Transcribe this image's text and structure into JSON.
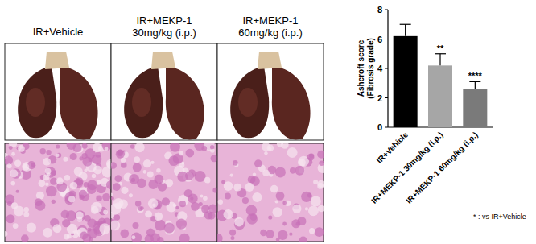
{
  "panels": {
    "labels": [
      "IR+Vehicle",
      "IR+MEKP-1\n30mg/kg (i.p.)",
      "IR+MEKP-1\n60mg/kg (i.p.)"
    ]
  },
  "chart_data": {
    "type": "bar",
    "y_label": "Ashcroft score\n(Fibrosis grade)",
    "categories": [
      "IR+Vehicle",
      "IR+MEKP-1 30mg/kg (i.p.)",
      "IR+MEKP-1 60mg/kg (i.p.)"
    ],
    "values": [
      6.2,
      4.2,
      2.6
    ],
    "errors": [
      0.8,
      0.8,
      0.5
    ],
    "significance": [
      null,
      "**",
      "****"
    ],
    "note": "* : vs IR+Vehicle",
    "colors": [
      "#000000",
      "#a6a6a6",
      "#7a7a7a"
    ],
    "ylim": [
      0,
      8
    ],
    "yticks": [
      0,
      2,
      4,
      6,
      8
    ],
    "grid": false
  }
}
